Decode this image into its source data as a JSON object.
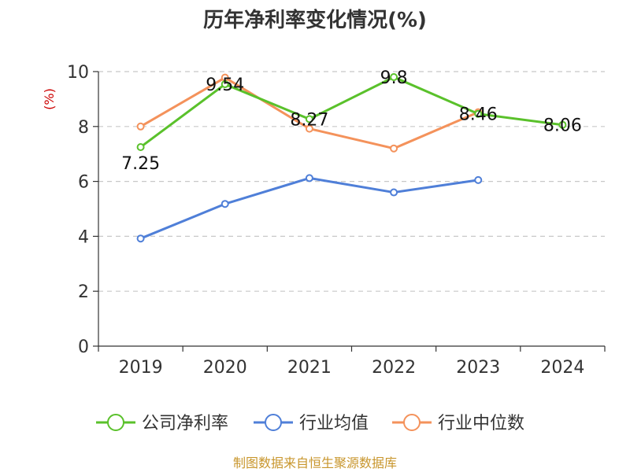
{
  "chart_data": {
    "type": "line",
    "title": "历年净利率变化情况(%)",
    "ylabel": "(%)",
    "categories": [
      "2019",
      "2020",
      "2021",
      "2022",
      "2023",
      "2024"
    ],
    "ylim": [
      0,
      10
    ],
    "yticks": [
      0,
      2,
      4,
      6,
      8,
      10
    ],
    "grid": true,
    "legend_position": "bottom",
    "series": [
      {
        "name": "公司净利率",
        "color": "#5ac12b",
        "values": [
          7.25,
          9.54,
          8.27,
          9.8,
          8.46,
          8.06
        ],
        "labels": [
          "7.25",
          "9.54",
          "8.27",
          "9.8",
          "8.46",
          "8.06"
        ]
      },
      {
        "name": "行业均值",
        "color": "#4f7fd8",
        "values": [
          3.92,
          5.18,
          6.12,
          5.6,
          6.05,
          null
        ]
      },
      {
        "name": "行业中位数",
        "color": "#f4925b",
        "values": [
          8.0,
          9.78,
          7.92,
          7.2,
          8.52,
          null
        ]
      }
    ]
  },
  "footer": "制图数据来自恒生聚源数据库"
}
